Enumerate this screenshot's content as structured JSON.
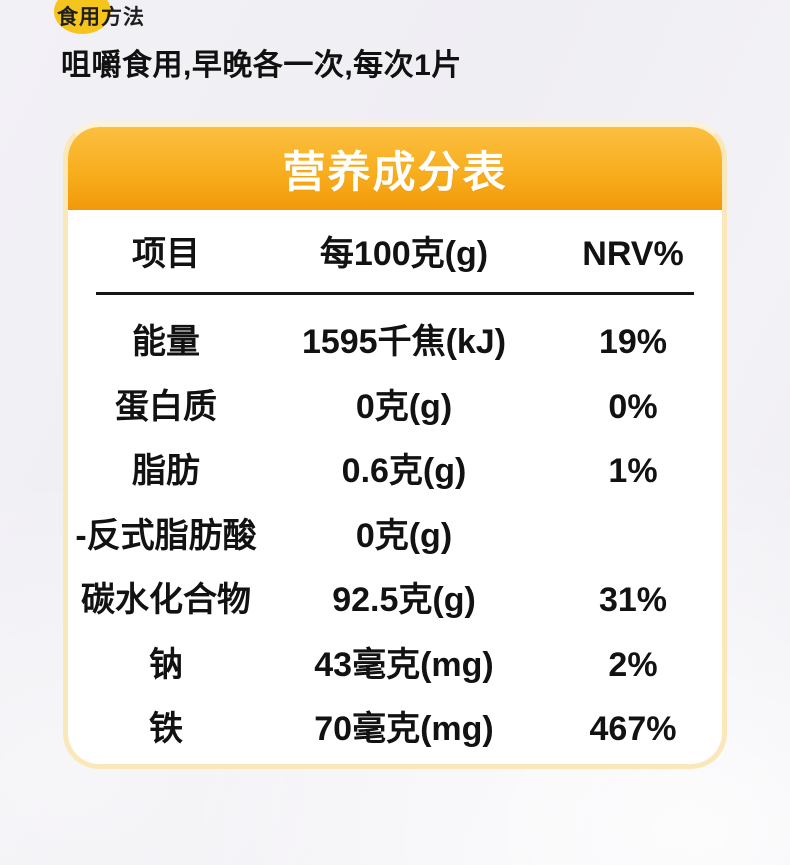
{
  "usage": {
    "label": "食用方法",
    "instruction": "咀嚼食用,早晚各一次,每次1片"
  },
  "nutrition": {
    "title": "营养成分表",
    "columns": {
      "item": "项目",
      "per100g": "每100克(g)",
      "nrv": "NRV%"
    },
    "rows": [
      {
        "item": "能量",
        "per100g": "1595千焦(kJ)",
        "nrv": "19%"
      },
      {
        "item": "蛋白质",
        "per100g": "0克(g)",
        "nrv": "0%"
      },
      {
        "item": "脂肪",
        "per100g": "0.6克(g)",
        "nrv": "1%"
      },
      {
        "item": "-反式脂肪酸",
        "per100g": "0克(g)",
        "nrv": ""
      },
      {
        "item": "碳水化合物",
        "per100g": "92.5克(g)",
        "nrv": "31%"
      },
      {
        "item": "钠",
        "per100g": "43毫克(mg)",
        "nrv": "2%"
      },
      {
        "item": "铁",
        "per100g": "70毫克(mg)",
        "nrv": "467%"
      }
    ]
  },
  "colors": {
    "highlight_yellow": "#F5C41D",
    "header_gradient_top": "#FCBF41",
    "header_gradient_bottom": "#F2990A",
    "card_border": "#FBE8BA",
    "text": "#121212",
    "title_text": "#FFFFFF"
  }
}
